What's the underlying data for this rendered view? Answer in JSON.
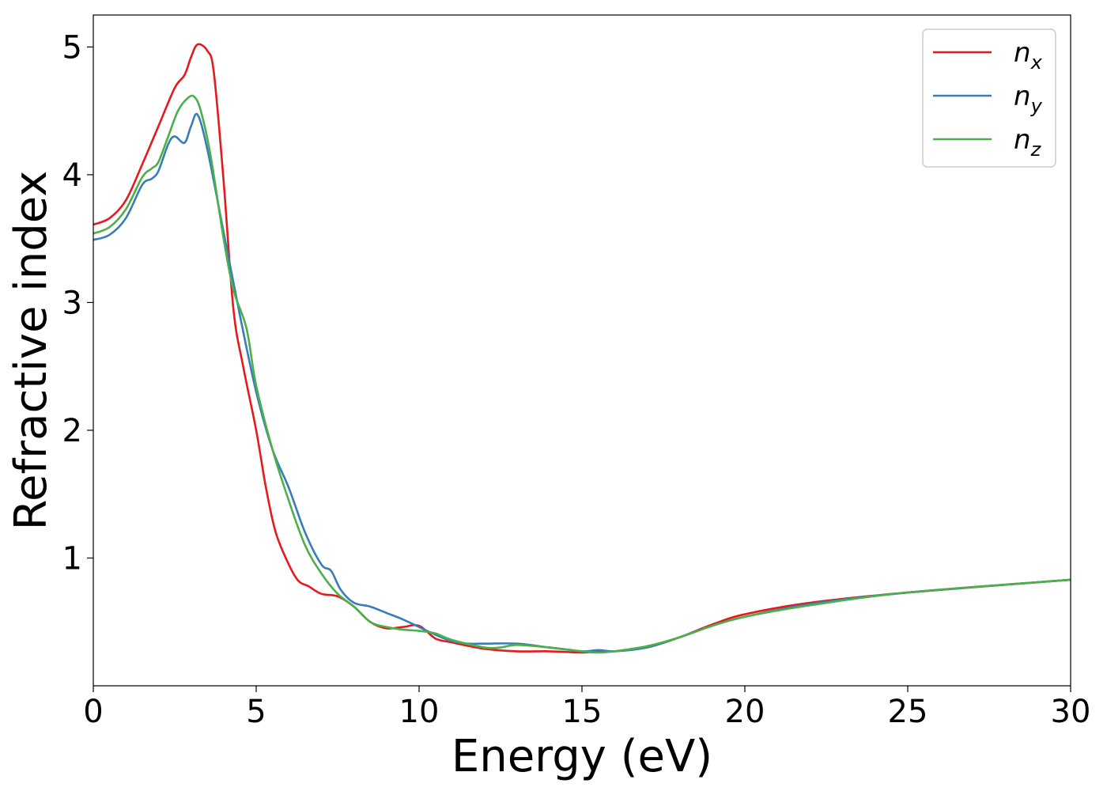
{
  "chart_data": {
    "type": "line",
    "xlabel": "Energy (eV)",
    "ylabel": "Refractive index",
    "xlim": [
      0,
      30
    ],
    "ylim": [
      0,
      5.25
    ],
    "xticks": [
      0,
      5,
      10,
      15,
      20,
      25,
      30
    ],
    "yticks": [
      1,
      2,
      3,
      4,
      5
    ],
    "grid": false,
    "legend_position": "top-right",
    "series": [
      {
        "name": "n",
        "subscript": "x",
        "color": "#e41a1c",
        "x": [
          0,
          0.5,
          1,
          1.5,
          2,
          2.5,
          2.8,
          3,
          3.2,
          3.5,
          3.7,
          4,
          4.3,
          4.6,
          5,
          5.3,
          5.6,
          6,
          6.3,
          6.6,
          7,
          7.5,
          8,
          8.5,
          9,
          9.5,
          10,
          10.5,
          11,
          12,
          13,
          14,
          15,
          15.5,
          16,
          17,
          18,
          19,
          20,
          22,
          25,
          30
        ],
        "y": [
          3.61,
          3.66,
          3.8,
          4.08,
          4.38,
          4.68,
          4.78,
          4.92,
          5.02,
          4.97,
          4.8,
          3.95,
          2.95,
          2.5,
          2.0,
          1.55,
          1.2,
          0.95,
          0.82,
          0.78,
          0.72,
          0.7,
          0.62,
          0.5,
          0.45,
          0.46,
          0.47,
          0.37,
          0.34,
          0.29,
          0.27,
          0.27,
          0.26,
          0.27,
          0.27,
          0.3,
          0.38,
          0.48,
          0.56,
          0.65,
          0.73,
          0.83
        ]
      },
      {
        "name": "n",
        "subscript": "y",
        "color": "#377eb8",
        "x": [
          0,
          0.5,
          1,
          1.5,
          1.8,
          2,
          2.3,
          2.5,
          2.8,
          3,
          3.2,
          3.5,
          4,
          4.5,
          5,
          5.5,
          6,
          6.5,
          7,
          7.3,
          7.6,
          8,
          8.5,
          9,
          9.5,
          10,
          10.5,
          11,
          11.5,
          12,
          13,
          14,
          15,
          15.5,
          16,
          17,
          18,
          19,
          20,
          22,
          25,
          30
        ],
        "y": [
          3.49,
          3.53,
          3.66,
          3.92,
          3.97,
          4.03,
          4.24,
          4.3,
          4.25,
          4.38,
          4.47,
          4.2,
          3.55,
          2.9,
          2.3,
          1.85,
          1.55,
          1.2,
          0.95,
          0.9,
          0.75,
          0.65,
          0.62,
          0.57,
          0.52,
          0.46,
          0.4,
          0.35,
          0.33,
          0.33,
          0.33,
          0.3,
          0.27,
          0.28,
          0.27,
          0.3,
          0.38,
          0.47,
          0.54,
          0.64,
          0.73,
          0.83
        ]
      },
      {
        "name": "n",
        "subscript": "z",
        "color": "#4daf4a",
        "x": [
          0,
          0.5,
          1,
          1.5,
          1.8,
          2,
          2.3,
          2.6,
          2.9,
          3.1,
          3.3,
          3.6,
          4,
          4.3,
          4.7,
          5,
          5.5,
          6,
          6.5,
          7,
          7.5,
          8,
          8.5,
          9,
          9.5,
          10,
          10.5,
          11,
          12,
          12.5,
          13,
          14,
          15,
          15.5,
          16,
          17,
          18,
          19,
          20,
          22,
          25,
          30
        ],
        "y": [
          3.54,
          3.59,
          3.73,
          3.98,
          4.05,
          4.1,
          4.3,
          4.5,
          4.6,
          4.61,
          4.5,
          4.15,
          3.5,
          3.1,
          2.8,
          2.35,
          1.85,
          1.45,
          1.1,
          0.88,
          0.72,
          0.62,
          0.5,
          0.46,
          0.44,
          0.43,
          0.41,
          0.36,
          0.3,
          0.3,
          0.32,
          0.3,
          0.27,
          0.26,
          0.27,
          0.31,
          0.38,
          0.47,
          0.54,
          0.63,
          0.73,
          0.83
        ]
      }
    ]
  }
}
